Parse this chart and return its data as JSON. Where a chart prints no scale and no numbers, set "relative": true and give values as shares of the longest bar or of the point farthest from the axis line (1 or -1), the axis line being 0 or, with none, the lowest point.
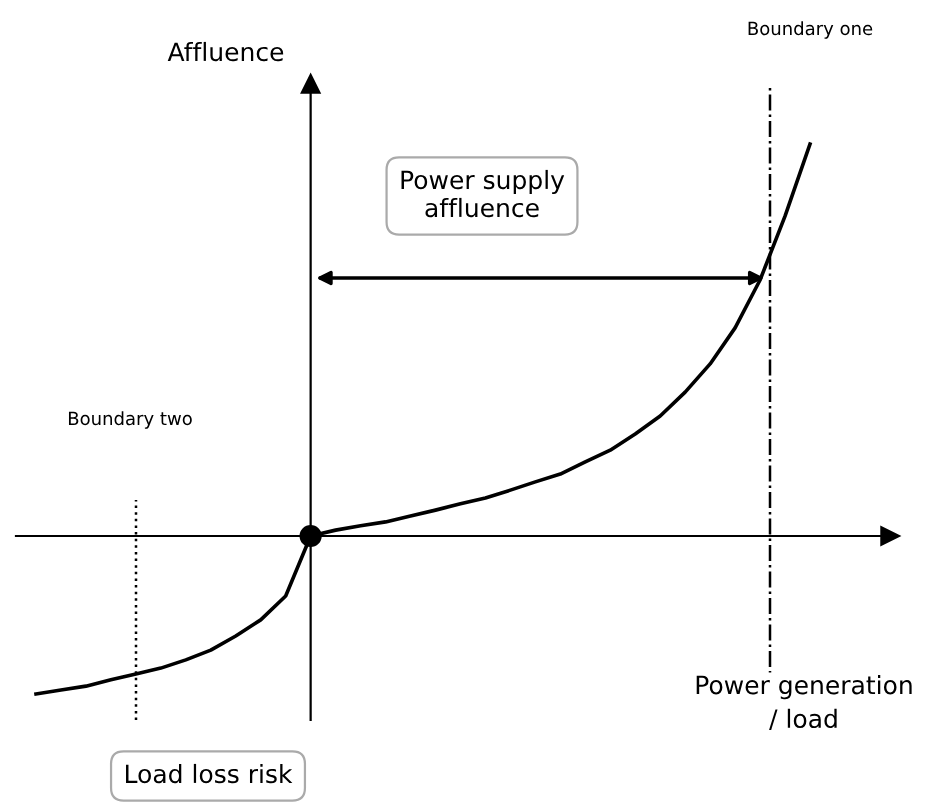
{
  "chart_data": {
    "type": "line",
    "relative": true,
    "xlabel": "Power generation / load",
    "ylabel": "Affluence",
    "categories": [
      null,
      null,
      null,
      null,
      null,
      null,
      null,
      null,
      null,
      null,
      null,
      null,
      null,
      null,
      null,
      null,
      null,
      null,
      null,
      null,
      null,
      null,
      null,
      null,
      null,
      null,
      null,
      null,
      null,
      null,
      null,
      null
    ],
    "series": [
      {
        "color": "#000000",
        "values": [
          -0.403,
          -0.393,
          -0.383,
          -0.367,
          -0.352,
          -0.337,
          -0.316,
          -0.291,
          -0.255,
          -0.214,
          -0.153,
          0,
          0.015,
          0.026,
          0.036,
          0.051,
          0.066,
          0.082,
          0.097,
          0.117,
          0.138,
          0.158,
          0.189,
          0.219,
          0.26,
          0.306,
          0.367,
          0.439,
          0.531,
          0.653,
          0.816,
          1
        ]
      }
    ],
    "annotations": [
      "Power supply affluence",
      "Load loss risk",
      "Boundary one",
      "Boundary two"
    ]
  }
}
